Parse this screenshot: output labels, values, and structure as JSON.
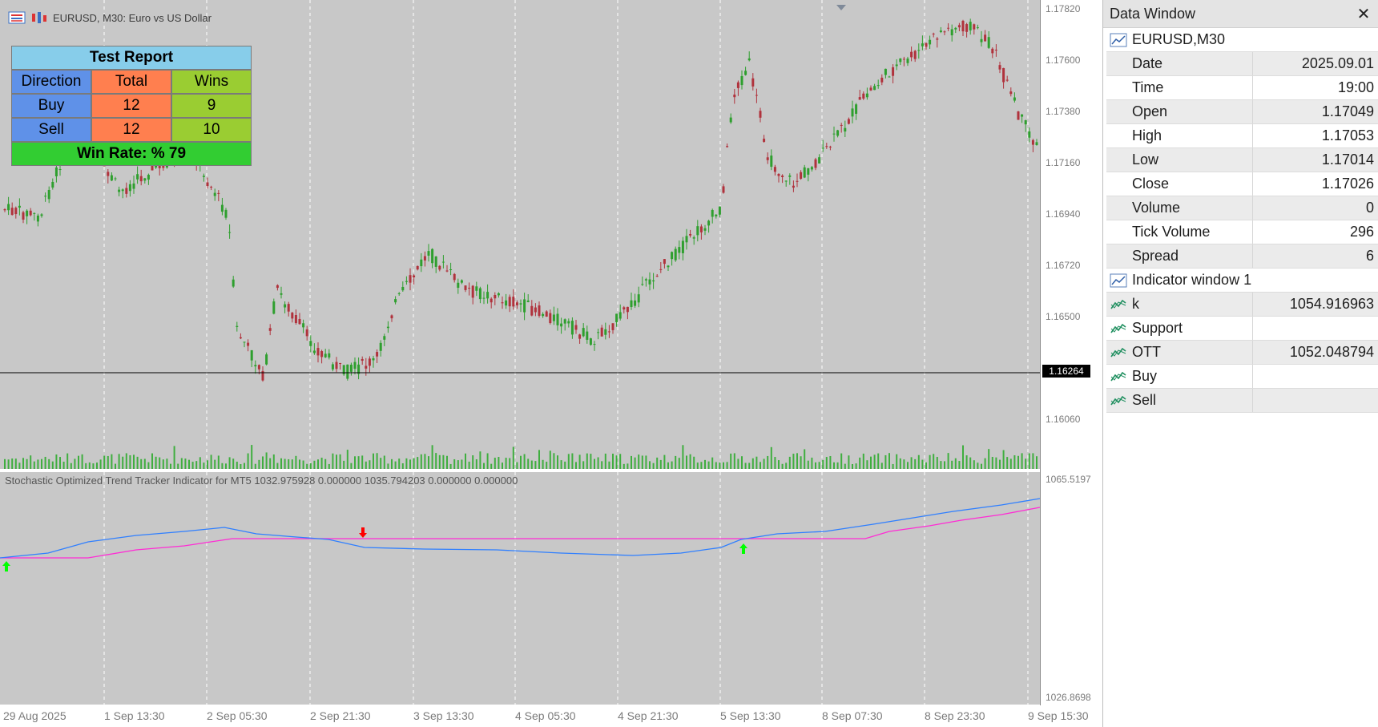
{
  "chart": {
    "symbol_title": "EURUSD, M30:  Euro vs US Dollar",
    "icons": [
      "chart-list-icon",
      "chart-bars-icon"
    ],
    "background": "#c8c8c8",
    "price_levels": [
      "1.17820",
      "1.17600",
      "1.17380",
      "1.17160",
      "1.16940",
      "1.16720",
      "1.16500",
      "1.16060"
    ],
    "current_price": "1.16264",
    "indicator_caption": "Stochastic Optimized Trend Tracker Indicator for MT5 1032.975928 0.000000 1035.794203 0.000000 0.000000",
    "indicator_scale_top": "1065.5197",
    "indicator_scale_bottom": "1026.8698",
    "time_labels": [
      "29 Aug 2025",
      "1 Sep 13:30",
      "2 Sep 05:30",
      "2 Sep 21:30",
      "3 Sep 13:30",
      "4 Sep 05:30",
      "4 Sep 21:30",
      "5 Sep 13:30",
      "8 Sep 07:30",
      "8 Sep 23:30",
      "9 Sep 15:30"
    ],
    "colors": {
      "bull": "#2e9f2e",
      "bear": "#b0323c",
      "volume": "#3fae3f",
      "k_line": "#2f7fff",
      "ott_line": "#ff2bd5",
      "buy_arrow": "#00ff00",
      "sell_arrow": "#ff0000"
    }
  },
  "test_report": {
    "title": "Test Report",
    "headers": [
      "Direction",
      "Total",
      "Wins"
    ],
    "rows": [
      {
        "direction": "Buy",
        "total": "12",
        "wins": "9"
      },
      {
        "direction": "Sell",
        "total": "12",
        "wins": "10"
      }
    ],
    "win_rate": "Win Rate: %  79"
  },
  "data_window": {
    "title": "Data Window",
    "close_label": "✕",
    "symbol_group": "EURUSD,M30",
    "rows": [
      {
        "name": "Date",
        "value": "2025.09.01"
      },
      {
        "name": "Time",
        "value": "19:00"
      },
      {
        "name": "Open",
        "value": "1.17049"
      },
      {
        "name": "High",
        "value": "1.17053"
      },
      {
        "name": "Low",
        "value": "1.17014"
      },
      {
        "name": "Close",
        "value": "1.17026"
      },
      {
        "name": "Volume",
        "value": "0"
      },
      {
        "name": "Tick Volume",
        "value": "296"
      },
      {
        "name": "Spread",
        "value": "6"
      }
    ],
    "indicator_group": "Indicator window 1",
    "indicator_rows": [
      {
        "name": "k",
        "value": "1054.916963"
      },
      {
        "name": "Support",
        "value": ""
      },
      {
        "name": "OTT",
        "value": "1052.048794"
      },
      {
        "name": "Buy",
        "value": ""
      },
      {
        "name": "Sell",
        "value": ""
      }
    ]
  }
}
